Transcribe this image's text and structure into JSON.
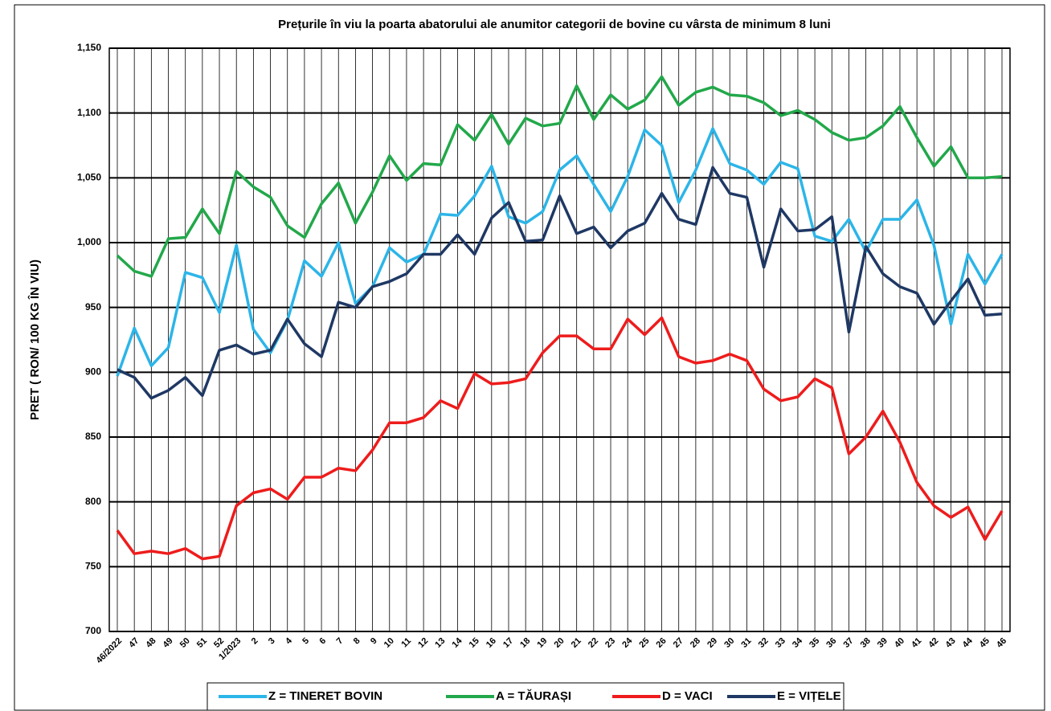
{
  "chart_data": {
    "type": "line",
    "title": "Prețurile în viu la poarta abatorului ale anumitor categorii de  bovine cu vârsta de minimum 8 luni",
    "y_label": "PRET  ( RON/ 100 KG ÎN VIU)",
    "categories": [
      "46/2022",
      "47",
      "48",
      "49",
      "50",
      "51",
      "52",
      "1/2023",
      "2",
      "3",
      "4",
      "5",
      "6",
      "7",
      "8",
      "9",
      "10",
      "11",
      "12",
      "13",
      "14",
      "15",
      "16",
      "17",
      "18",
      "19",
      "20",
      "21",
      "22",
      "23",
      "24",
      "25",
      "26",
      "27",
      "28",
      "29",
      "30",
      "31",
      "32",
      "33",
      "34",
      "35",
      "36",
      "37",
      "38",
      "39",
      "40",
      "41",
      "42",
      "43",
      "44",
      "45",
      "46"
    ],
    "ylim": [
      700,
      1150
    ],
    "yticks": [
      700,
      750,
      800,
      850,
      900,
      950,
      {
        "value": 1000,
        "label": "1,000"
      },
      {
        "value": 1050,
        "label": "1,050"
      },
      {
        "value": 1100,
        "label": "1,100"
      },
      {
        "value": 1150,
        "label": "1,150"
      }
    ],
    "grid": true,
    "legend": "bottom",
    "series": [
      {
        "name": "Z  = TINERET BOVIN",
        "color": "#2cb5e8",
        "values": [
          897,
          934,
          905,
          919,
          977,
          973,
          946,
          998,
          933,
          915,
          940,
          986,
          974,
          1000,
          953,
          966,
          996,
          985,
          991,
          1022,
          1021,
          1036,
          1059,
          1020,
          1015,
          1024,
          1056,
          1067,
          1045,
          1024,
          1051,
          1087,
          1075,
          1031,
          1056,
          1088,
          1061,
          1056,
          1045,
          1062,
          1057,
          1005,
          1001,
          1018,
          993,
          1018,
          1018,
          1033,
          998,
          937,
          991,
          968,
          991
        ]
      },
      {
        "name": "A = TĂURAȘI",
        "color": "#22a84a",
        "values": [
          990,
          978,
          974,
          1003,
          1004,
          1026,
          1007,
          1055,
          1043,
          1035,
          1013,
          1004,
          1030,
          1046,
          1015,
          1039,
          1067,
          1048,
          1061,
          1060,
          1091,
          1079,
          1099,
          1076,
          1096,
          1090,
          1092,
          1121,
          1095,
          1114,
          1103,
          1110,
          1128,
          1106,
          1116,
          1120,
          1114,
          1113,
          1108,
          1098,
          1102,
          1095,
          1085,
          1079,
          1081,
          1090,
          1105,
          1081,
          1059,
          1074,
          1050,
          1050,
          1051
        ]
      },
      {
        "name": "D = VACI",
        "color": "#ee1c1c",
        "values": [
          778,
          760,
          762,
          760,
          764,
          756,
          758,
          797,
          807,
          810,
          802,
          819,
          819,
          826,
          824,
          840,
          861,
          861,
          865,
          878,
          872,
          899,
          891,
          892,
          895,
          915,
          928,
          928,
          918,
          918,
          941,
          929,
          942,
          912,
          907,
          909,
          914,
          909,
          887,
          878,
          881,
          895,
          888,
          837,
          850,
          870,
          846,
          815,
          797,
          788,
          796,
          771,
          793
        ]
      },
      {
        "name": "E = VIȚELE",
        "color": "#1f3864",
        "values": [
          902,
          896,
          880,
          886,
          896,
          882,
          917,
          921,
          914,
          917,
          941,
          922,
          912,
          954,
          950,
          966,
          970,
          976,
          991,
          991,
          1006,
          991,
          1019,
          1031,
          1001,
          1002,
          1036,
          1007,
          1012,
          996,
          1009,
          1015,
          1038,
          1018,
          1014,
          1058,
          1038,
          1035,
          981,
          1026,
          1009,
          1010,
          1020,
          931,
          997,
          976,
          966,
          961,
          937,
          955,
          972,
          944,
          945
        ]
      }
    ]
  }
}
